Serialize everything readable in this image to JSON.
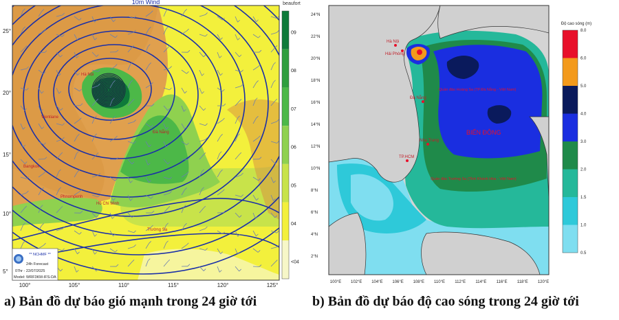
{
  "left_map": {
    "header": "10m Wind",
    "unit": "beaufort",
    "lat_labels": [
      "25°",
      "20°",
      "15°",
      "10°",
      "5°"
    ],
    "lon_labels": [
      "100°",
      "105°",
      "110°",
      "115°",
      "120°",
      "125°"
    ],
    "legend": {
      "labels": [
        "09",
        "08",
        "07",
        "06",
        "05",
        "04",
        "<04"
      ],
      "colors": [
        "#0e7a3a",
        "#2f9e3e",
        "#4cb848",
        "#8fd14f",
        "#c8e34a",
        "#f3f03c",
        "#f7f7c8"
      ]
    },
    "places": [
      "Hà Nội",
      "Vientiane",
      "Đà Nẵng",
      "Bangkok",
      "Phnompenh",
      "Hồ Chí Minh",
      "Trường Sa"
    ],
    "info": {
      "agency": "** NCHMF **",
      "line1": "24h Forecast",
      "line2": "07hr - 22/07/2025",
      "line3": "Model: WRF3KM-IFS-DA"
    }
  },
  "right_map": {
    "lat_labels": [
      "24°N",
      "22°N",
      "20°N",
      "18°N",
      "16°N",
      "14°N",
      "12°N",
      "10°N",
      "8°N",
      "6°N",
      "4°N",
      "2°N"
    ],
    "lon_labels": [
      "100°E",
      "102°E",
      "104°E",
      "106°E",
      "108°E",
      "110°E",
      "112°E",
      "114°E",
      "116°E",
      "118°E",
      "120°E"
    ],
    "legend": {
      "title": "Độ cao sóng (m)",
      "labels": [
        "8.0",
        "6.0",
        "5.0",
        "4.0",
        "3.0",
        "2.0",
        "1.5",
        "1.0",
        "0.5"
      ],
      "colors": [
        "#e8102a",
        "#f39a1c",
        "#0a1a5c",
        "#1a2ee0",
        "#1f8a4a",
        "#25b89a",
        "#2ec9d9",
        "#7fdef0"
      ]
    },
    "places": [
      "Hà Nội",
      "Hải Phòng",
      "Quần đảo Hoàng Sa (TP.Đà Nẵng - Việt Nam)",
      "Đà Nẵng",
      "BIỂN ĐÔNG",
      "Nha Trang",
      "TP.HCM",
      "Quần đảo Trường Sa (Tỉnh Khánh Hòa - Việt Nam)"
    ]
  },
  "captions": {
    "a": "a) Bản đồ dự báo gió mạnh trong 24 giờ tới",
    "b": "b) Bản đồ dự báo độ cao sóng trong 24 giờ tới"
  }
}
